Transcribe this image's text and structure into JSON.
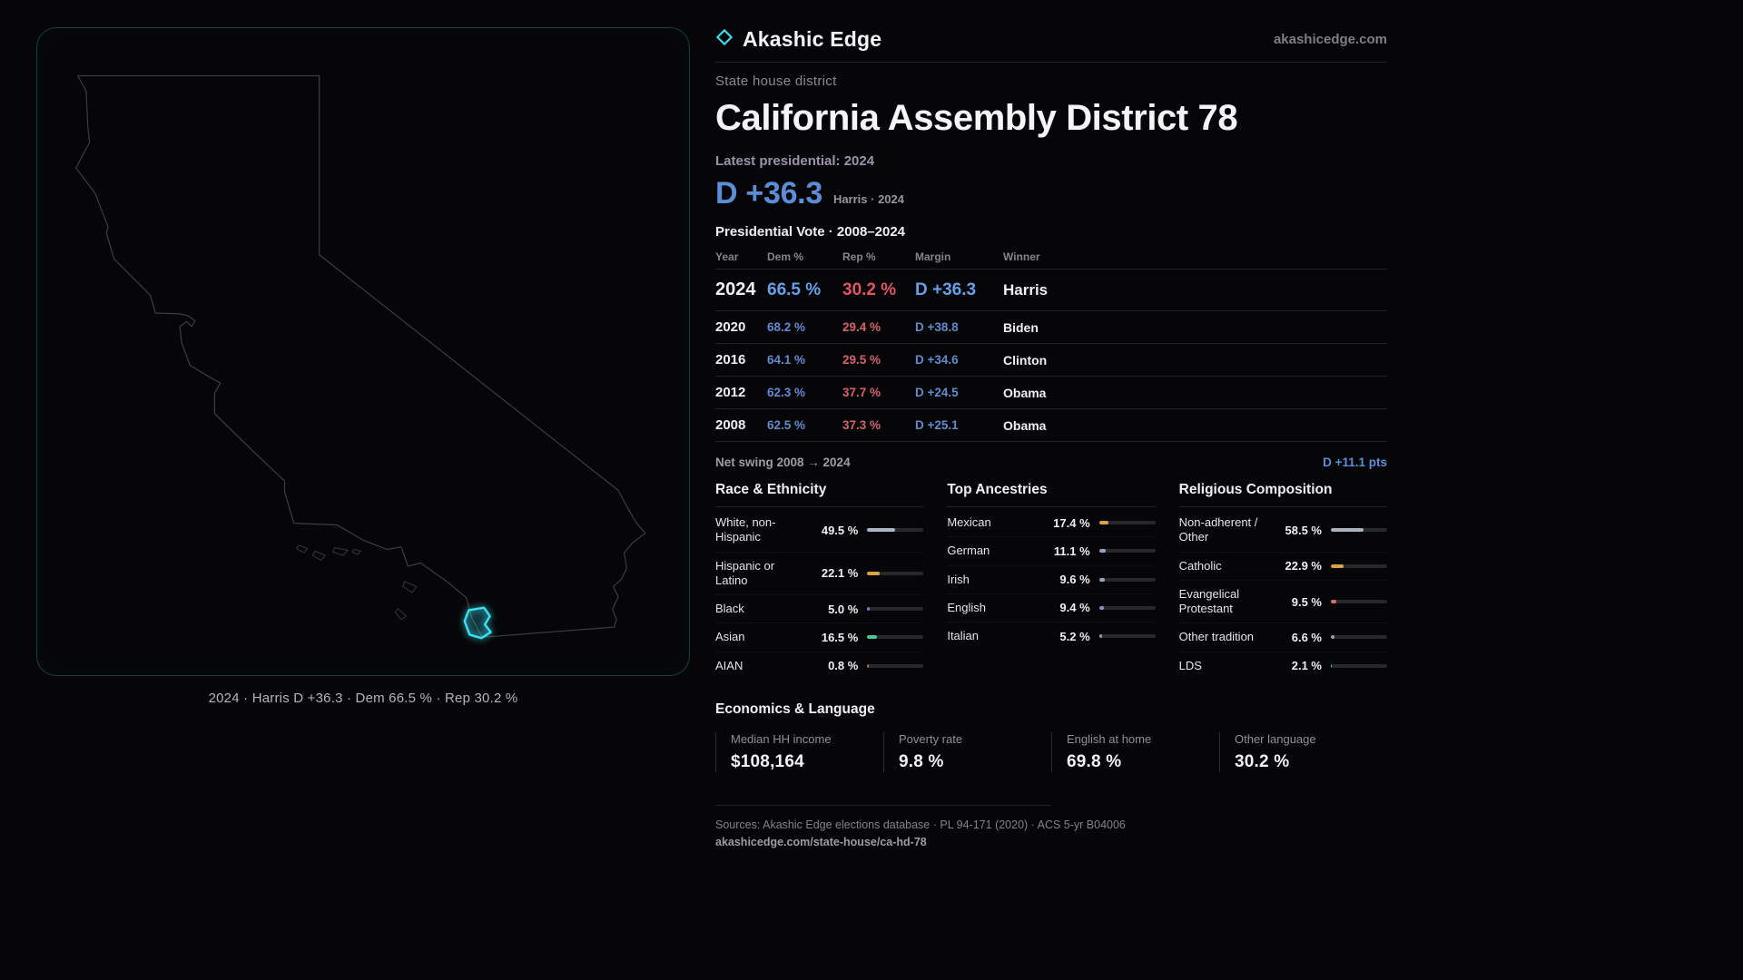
{
  "brand": {
    "name": "Akashic Edge",
    "domain": "akashicedge.com"
  },
  "header": {
    "kicker": "State house district",
    "title": "California Assembly District 78"
  },
  "latest": {
    "label": "Latest presidential: 2024",
    "margin": "D +36.3",
    "detail": "Harris · 2024"
  },
  "results": {
    "title": "Presidential Vote · 2008–2024",
    "columns": [
      "Year",
      "Dem %",
      "Rep %",
      "Margin",
      "Winner"
    ],
    "rows": [
      {
        "year": "2024",
        "dem": "66.5 %",
        "rep": "30.2 %",
        "margin": "D +36.3",
        "winner": "Harris",
        "featured": true
      },
      {
        "year": "2020",
        "dem": "68.2 %",
        "rep": "29.4 %",
        "margin": "D +38.8",
        "winner": "Biden",
        "featured": false
      },
      {
        "year": "2016",
        "dem": "64.1 %",
        "rep": "29.5 %",
        "margin": "D +34.6",
        "winner": "Clinton",
        "featured": false
      },
      {
        "year": "2012",
        "dem": "62.3 %",
        "rep": "37.7 %",
        "margin": "D +24.5",
        "winner": "Obama",
        "featured": false
      },
      {
        "year": "2008",
        "dem": "62.5 %",
        "rep": "37.3 %",
        "margin": "D +25.1",
        "winner": "Obama",
        "featured": false
      }
    ],
    "swing_label": "Net swing 2008 → 2024",
    "swing_value": "D +11.1 pts"
  },
  "demographics": [
    {
      "title": "Race & Ethnicity",
      "rows": [
        {
          "label": "White, non-Hispanic",
          "value": "49.5 %",
          "pct": 49.5,
          "color": "#a9b6c6"
        },
        {
          "label": "Hispanic or Latino",
          "value": "22.1 %",
          "pct": 22.1,
          "color": "#d9a544"
        },
        {
          "label": "Black",
          "value": "5.0 %",
          "pct": 5.0,
          "color": "#7b77e0"
        },
        {
          "label": "Asian",
          "value": "16.5 %",
          "pct": 16.5,
          "color": "#49c79a"
        },
        {
          "label": "AIAN",
          "value": "0.8 %",
          "pct": 0.8,
          "color": "#c06a45"
        }
      ]
    },
    {
      "title": "Top Ancestries",
      "rows": [
        {
          "label": "Mexican",
          "value": "17.4 %",
          "pct": 17.4,
          "color": "#d9a544"
        },
        {
          "label": "German",
          "value": "11.1 %",
          "pct": 11.1,
          "color": "#8fa3c9"
        },
        {
          "label": "Irish",
          "value": "9.6 %",
          "pct": 9.6,
          "color": "#9aa5b1"
        },
        {
          "label": "English",
          "value": "9.4 %",
          "pct": 9.4,
          "color": "#8494c9"
        },
        {
          "label": "Italian",
          "value": "5.2 %",
          "pct": 5.2,
          "color": "#98a0a8"
        }
      ]
    },
    {
      "title": "Religious Composition",
      "rows": [
        {
          "label": "Non-adherent / Other",
          "value": "58.5 %",
          "pct": 58.5,
          "color": "#aab2bd"
        },
        {
          "label": "Catholic",
          "value": "22.9 %",
          "pct": 22.9,
          "color": "#d9a544"
        },
        {
          "label": "Evangelical Protestant",
          "value": "9.5 %",
          "pct": 9.5,
          "color": "#e06a6a"
        },
        {
          "label": "Other tradition",
          "value": "6.6 %",
          "pct": 6.6,
          "color": "#9aa2ac"
        },
        {
          "label": "LDS",
          "value": "2.1 %",
          "pct": 2.1,
          "color": "#3fd0c9"
        }
      ]
    }
  ],
  "economics": {
    "title": "Economics & Language",
    "stats": [
      {
        "label": "Median HH income",
        "value": "$108,164"
      },
      {
        "label": "Poverty rate",
        "value": "9.8 %"
      },
      {
        "label": "English at home",
        "value": "69.8 %"
      },
      {
        "label": "Other language",
        "value": "30.2 %"
      }
    ]
  },
  "map": {
    "caption": "2024 · Harris D +36.3 · Dem 66.5 % · Rep 30.2 %"
  },
  "footer": {
    "sources": "Sources: Akashic Edge elections database · PL 94-171 (2020) · ACS 5-yr B04006",
    "permalink": "akashicedge.com/state-house/ca-hd-78"
  },
  "colors": {
    "dem": "#6aa0e8",
    "rep": "#e2636b",
    "accent": "#38e0f2"
  }
}
